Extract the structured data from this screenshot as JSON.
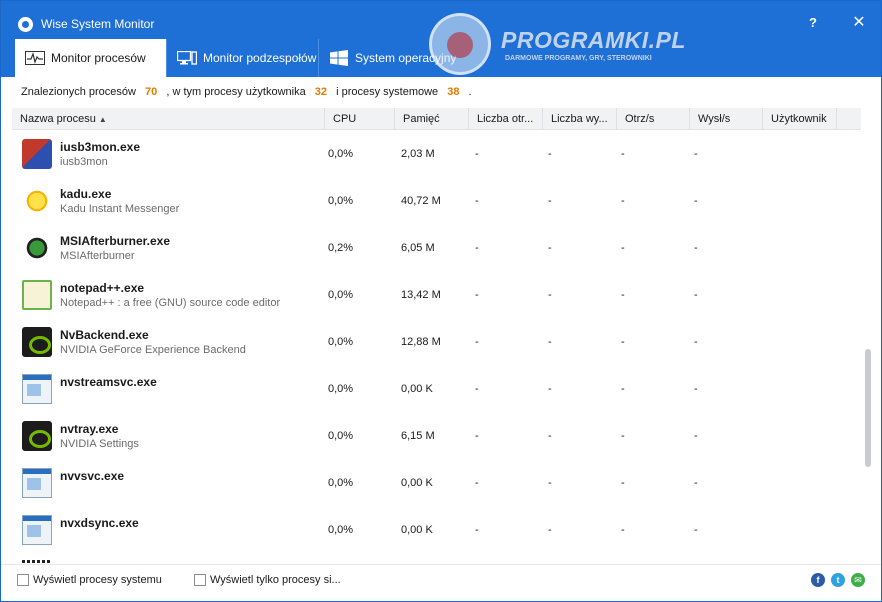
{
  "window": {
    "title": "Wise System Monitor",
    "help_label": "?",
    "close_label": "✕"
  },
  "tabs": [
    {
      "label": "Monitor procesów",
      "icon": "pulse-monitor-icon"
    },
    {
      "label": "Monitor podzespołów",
      "icon": "computer-icon"
    },
    {
      "label": "System operacyjny",
      "icon": "windows-logo-icon"
    }
  ],
  "watermark": {
    "brand": "PROGRAMKI.PL",
    "tagline": "DARMOWE PROGRAMY, GRY, STEROWNIKI"
  },
  "summary": {
    "prefix": "Znalezionych procesów",
    "total": "70",
    "middle": ", w tym procesy użytkownika",
    "user": "32",
    "suffix": "i procesy systemowe",
    "system": "38",
    "end": "."
  },
  "columns": {
    "name": "Nazwa procesu",
    "name_sort": "▲",
    "cpu": "CPU",
    "memory": "Pamięć",
    "threads": "Liczba otr...",
    "handles": "Liczba wy...",
    "received": "Otrz/s",
    "sent": "Wysł/s",
    "user": "Użytkownik"
  },
  "rows": [
    {
      "name": "iusb3mon.exe",
      "desc": "iusb3mon",
      "cpu": "0,0%",
      "mem": "2,03 M",
      "thr": "-",
      "hnd": "-",
      "rx": "-",
      "tx": "-",
      "icon": "usb-icon"
    },
    {
      "name": "kadu.exe",
      "desc": "Kadu Instant Messenger",
      "cpu": "0,0%",
      "mem": "40,72 M",
      "thr": "-",
      "hnd": "-",
      "rx": "-",
      "tx": "-",
      "icon": "smiley-sun-icon"
    },
    {
      "name": "MSIAfterburner.exe",
      "desc": "MSIAfterburner",
      "cpu": "0,2%",
      "mem": "6,05 M",
      "thr": "-",
      "hnd": "-",
      "rx": "-",
      "tx": "-",
      "icon": "afterburner-icon"
    },
    {
      "name": "notepad++.exe",
      "desc": "Notepad++ : a free (GNU) source code editor",
      "cpu": "0,0%",
      "mem": "13,42 M",
      "thr": "-",
      "hnd": "-",
      "rx": "-",
      "tx": "-",
      "icon": "notepad-icon"
    },
    {
      "name": "NvBackend.exe",
      "desc": "NVIDIA GeForce Experience Backend",
      "cpu": "0,0%",
      "mem": "12,88 M",
      "thr": "-",
      "hnd": "-",
      "rx": "-",
      "tx": "-",
      "icon": "nvidia-icon"
    },
    {
      "name": "nvstreamsvc.exe",
      "desc": "",
      "cpu": "0,0%",
      "mem": "0,00 K",
      "thr": "-",
      "hnd": "-",
      "rx": "-",
      "tx": "-",
      "icon": "generic-window-icon"
    },
    {
      "name": "nvtray.exe",
      "desc": "NVIDIA Settings",
      "cpu": "0,0%",
      "mem": "6,15 M",
      "thr": "-",
      "hnd": "-",
      "rx": "-",
      "tx": "-",
      "icon": "nvidia-icon"
    },
    {
      "name": "nvvsvc.exe",
      "desc": "",
      "cpu": "0,0%",
      "mem": "0,00 K",
      "thr": "-",
      "hnd": "-",
      "rx": "-",
      "tx": "-",
      "icon": "generic-window-icon"
    },
    {
      "name": "nvxdsync.exe",
      "desc": "",
      "cpu": "0,0%",
      "mem": "0,00 K",
      "thr": "-",
      "hnd": "-",
      "rx": "-",
      "tx": "-",
      "icon": "generic-window-icon"
    }
  ],
  "footer": {
    "show_system": "Wyświetl procesy systemu",
    "show_user_only": "Wyświetl tylko procesy si...",
    "facebook": "f",
    "twitter": "t",
    "mail": "✉"
  }
}
